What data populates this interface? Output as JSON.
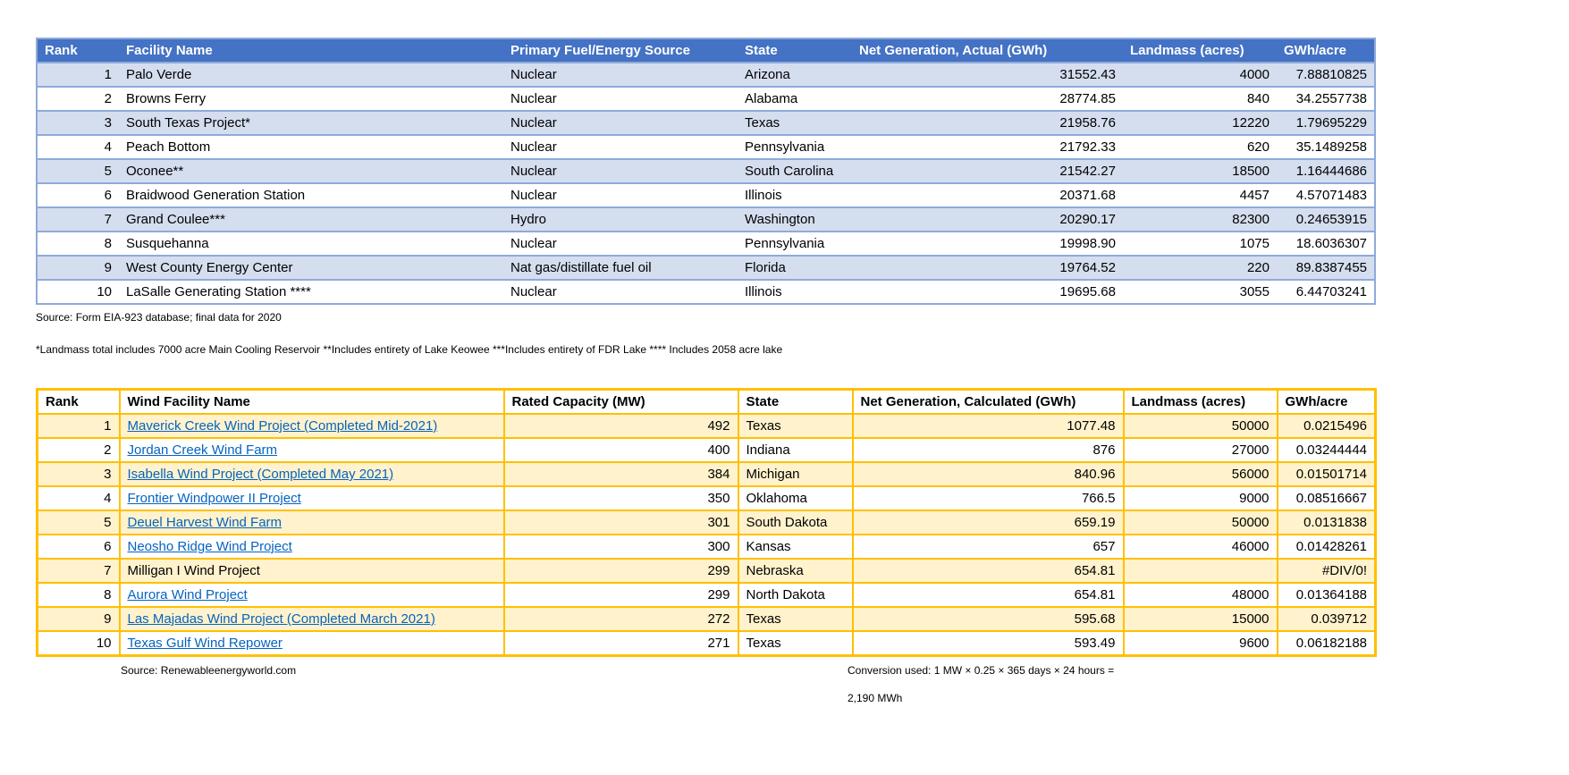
{
  "nuclear_table": {
    "headers": [
      "Rank",
      "Facility Name",
      "Primary Fuel/Energy Source",
      "State",
      "Net Generation, Actual (GWh)",
      "Landmass (acres)",
      "GWh/acre"
    ],
    "rows": [
      {
        "rank": "1",
        "name": "Palo Verde",
        "fuel": "Nuclear",
        "state": "Arizona",
        "net_gen": "31552.43",
        "landmass": "4000",
        "gwh_acre": "7.88810825"
      },
      {
        "rank": "2",
        "name": "Browns Ferry",
        "fuel": "Nuclear",
        "state": "Alabama",
        "net_gen": "28774.85",
        "landmass": "840",
        "gwh_acre": "34.2557738"
      },
      {
        "rank": "3",
        "name": "South Texas Project*",
        "fuel": "Nuclear",
        "state": "Texas",
        "net_gen": "21958.76",
        "landmass": "12220",
        "gwh_acre": "1.79695229"
      },
      {
        "rank": "4",
        "name": "Peach Bottom",
        "fuel": "Nuclear",
        "state": "Pennsylvania",
        "net_gen": "21792.33",
        "landmass": "620",
        "gwh_acre": "35.1489258"
      },
      {
        "rank": "5",
        "name": "Oconee**",
        "fuel": "Nuclear",
        "state": "South Carolina",
        "net_gen": "21542.27",
        "landmass": "18500",
        "gwh_acre": "1.16444686"
      },
      {
        "rank": "6",
        "name": "Braidwood Generation Station",
        "fuel": "Nuclear",
        "state": "Illinois",
        "net_gen": "20371.68",
        "landmass": "4457",
        "gwh_acre": "4.57071483"
      },
      {
        "rank": "7",
        "name": "Grand Coulee***",
        "fuel": "Hydro",
        "state": "Washington",
        "net_gen": "20290.17",
        "landmass": "82300",
        "gwh_acre": "0.24653915"
      },
      {
        "rank": "8",
        "name": "Susquehanna",
        "fuel": "Nuclear",
        "state": "Pennsylvania",
        "net_gen": "19998.90",
        "landmass": "1075",
        "gwh_acre": "18.6036307"
      },
      {
        "rank": "9",
        "name": "West County Energy Center",
        "fuel": "Nat gas/distillate fuel oil",
        "state": "Florida",
        "net_gen": "19764.52",
        "landmass": "220",
        "gwh_acre": "89.8387455"
      },
      {
        "rank": "10",
        "name": "LaSalle Generating Station ****",
        "fuel": "Nuclear",
        "state": "Illinois",
        "net_gen": "19695.68",
        "landmass": "3055",
        "gwh_acre": "6.44703241"
      }
    ],
    "source": "Source: Form EIA-923 database; final data for 2020",
    "footnote": "*Landmass total includes 7000 acre Main Cooling Reservoir **Includes entirety of Lake Keowee ***Includes entirety of FDR Lake **** Includes 2058 acre lake"
  },
  "wind_table": {
    "headers": [
      "Rank",
      "Wind Facility Name",
      "Rated Capacity (MW)",
      "State",
      "Net Generation, Calculated (GWh)",
      "Landmass (acres)",
      "GWh/acre"
    ],
    "rows": [
      {
        "rank": "1",
        "name": "Maverick Creek Wind Project (Completed Mid-2021)",
        "is_link": true,
        "capacity": "492",
        "state": "Texas",
        "net_gen": "1077.48",
        "landmass": "50000",
        "gwh_acre": "0.0215496"
      },
      {
        "rank": "2",
        "name": "Jordan Creek Wind Farm",
        "is_link": true,
        "capacity": "400",
        "state": "Indiana",
        "net_gen": "876",
        "landmass": "27000",
        "gwh_acre": "0.03244444"
      },
      {
        "rank": "3",
        "name": "Isabella Wind Project (Completed May 2021)",
        "is_link": true,
        "capacity": "384",
        "state": "Michigan",
        "net_gen": "840.96",
        "landmass": "56000",
        "gwh_acre": "0.01501714"
      },
      {
        "rank": "4",
        "name": "Frontier Windpower II Project",
        "is_link": true,
        "capacity": "350",
        "state": "Oklahoma",
        "net_gen": "766.5",
        "landmass": "9000",
        "gwh_acre": "0.08516667"
      },
      {
        "rank": "5",
        "name": "Deuel Harvest Wind Farm",
        "is_link": true,
        "capacity": "301",
        "state": "South Dakota",
        "net_gen": "659.19",
        "landmass": "50000",
        "gwh_acre": "0.0131838"
      },
      {
        "rank": "6",
        "name": "Neosho Ridge Wind Project",
        "is_link": true,
        "capacity": "300",
        "state": "Kansas",
        "net_gen": "657",
        "landmass": "46000",
        "gwh_acre": "0.01428261"
      },
      {
        "rank": "7",
        "name": "Milligan I Wind Project",
        "is_link": false,
        "capacity": "299",
        "state": "Nebraska",
        "net_gen": "654.81",
        "landmass": "",
        "gwh_acre": "#DIV/0!"
      },
      {
        "rank": "8",
        "name": "Aurora Wind Project",
        "is_link": true,
        "capacity": "299",
        "state": "North Dakota",
        "net_gen": "654.81",
        "landmass": "48000",
        "gwh_acre": "0.01364188"
      },
      {
        "rank": "9",
        "name": "Las Majadas Wind Project (Completed March 2021)",
        "is_link": true,
        "capacity": "272",
        "state": "Texas",
        "net_gen": "595.68",
        "landmass": "15000",
        "gwh_acre": "0.039712"
      },
      {
        "rank": "10",
        "name": "Texas Gulf Wind Repower",
        "is_link": true,
        "capacity": "271",
        "state": "Texas",
        "net_gen": "593.49",
        "landmass": "9600",
        "gwh_acre": "0.06182188"
      }
    ],
    "source": "Source: Renewableenergyworld.com",
    "conversion_note_line1": "Conversion used: 1 MW × 0.25 × 365 days × 24 hours =",
    "conversion_note_line2": "2,190 MWh"
  },
  "colors": {
    "header_blue": "#4472C4",
    "band_blue": "#D5DEEF",
    "border_blue": "#8EAADB",
    "border_gold": "#FFC000",
    "band_yellow": "#FFF2CC",
    "link_blue": "#0563C1"
  }
}
